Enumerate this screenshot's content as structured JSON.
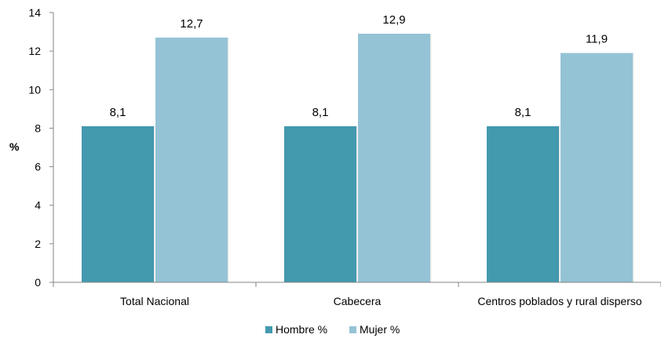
{
  "chart_data": {
    "type": "bar",
    "title": "",
    "xlabel": "",
    "ylabel": "%",
    "ylim": [
      0,
      14
    ],
    "yticks": [
      0,
      2,
      4,
      6,
      8,
      10,
      12,
      14
    ],
    "grid": false,
    "legend_position": "bottom",
    "categories": [
      "Total Nacional",
      "Cabecera",
      "Centros poblados y rural disperso"
    ],
    "series": [
      {
        "name": "Hombre %",
        "color": "#4399AE",
        "values": [
          8.1,
          8.1,
          8.1
        ],
        "labels": [
          "8,1",
          "8,1",
          "8,1"
        ]
      },
      {
        "name": "Mujer %",
        "color": "#94C3D5",
        "values": [
          12.7,
          12.9,
          11.9
        ],
        "labels": [
          "12,7",
          "12,9",
          "11,9"
        ]
      }
    ]
  }
}
